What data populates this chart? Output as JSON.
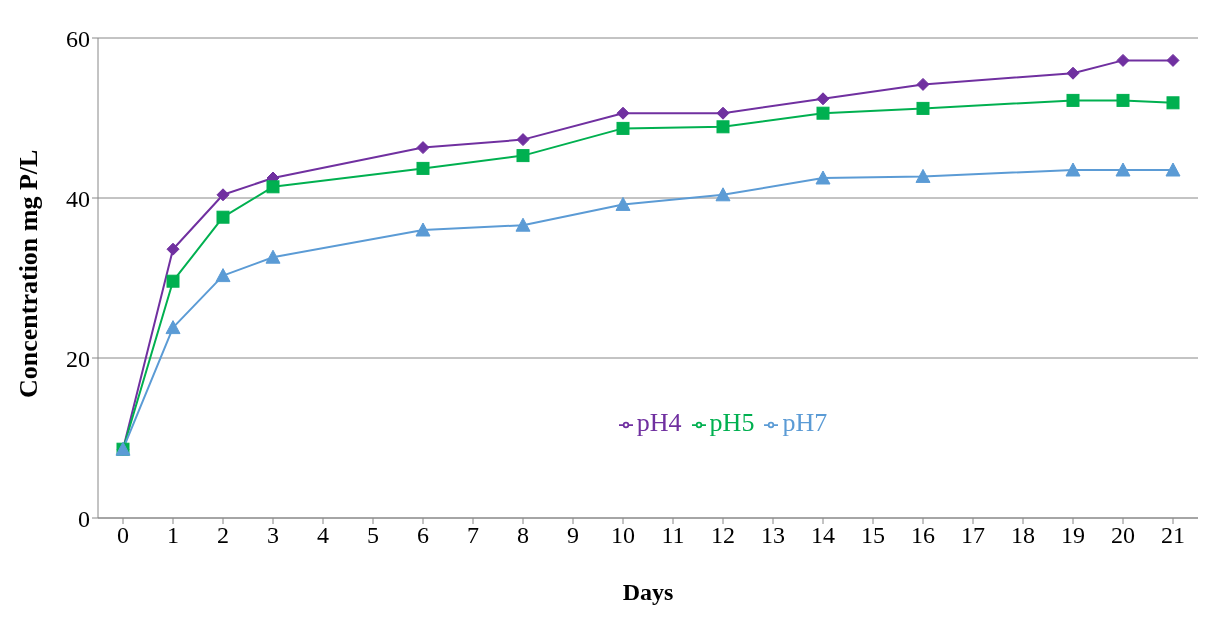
{
  "chart_data": {
    "type": "line",
    "xlabel": "Days",
    "ylabel": "Concentration mg P/L",
    "x": [
      0,
      1,
      2,
      3,
      6,
      8,
      10,
      12,
      14,
      16,
      19,
      20,
      21
    ],
    "xlim": [
      -0.5,
      21.5
    ],
    "xticks": [
      0,
      1,
      2,
      3,
      4,
      5,
      6,
      7,
      8,
      9,
      10,
      11,
      12,
      13,
      14,
      15,
      16,
      17,
      18,
      19,
      20,
      21
    ],
    "ylim": [
      0,
      60
    ],
    "yticks": [
      0,
      20,
      40,
      60
    ],
    "grid": "y",
    "legend": "center",
    "series": [
      {
        "name": "pH4",
        "color": "#7030a0",
        "marker": "diamond",
        "values": [
          8.6,
          33.6,
          40.4,
          42.5,
          46.3,
          47.3,
          50.6,
          50.6,
          52.4,
          54.2,
          55.6,
          57.2,
          57.2
        ]
      },
      {
        "name": "pH5",
        "color": "#00b050",
        "marker": "square",
        "values": [
          8.6,
          29.6,
          37.6,
          41.4,
          43.7,
          45.3,
          48.7,
          48.9,
          50.6,
          51.2,
          52.2,
          52.2,
          51.9
        ]
      },
      {
        "name": "pH7",
        "color": "#5b9bd5",
        "marker": "triangle",
        "values": [
          8.6,
          23.8,
          30.3,
          32.6,
          36.0,
          36.6,
          39.2,
          40.4,
          42.5,
          42.7,
          43.5,
          43.5,
          43.5
        ]
      }
    ]
  }
}
